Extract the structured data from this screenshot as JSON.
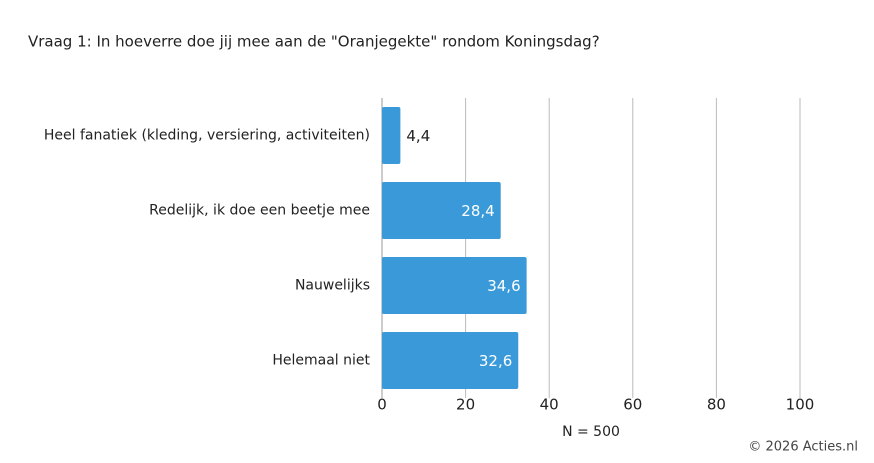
{
  "chart_data": {
    "type": "bar",
    "orientation": "horizontal",
    "title": "Vraag 1: In hoeverre doe jij mee aan de \"Oranjegekte\" rondom Koningsdag?",
    "categories": [
      "Heel fanatiek (kleding, versiering, activiteiten)",
      "Redelijk, ik doe een beetje mee",
      "Nauwelijks",
      "Helemaal niet"
    ],
    "values": [
      4.4,
      28.4,
      34.6,
      32.6
    ],
    "value_labels": [
      "4,4",
      "28,4",
      "34,6",
      "32,6"
    ],
    "color": "#3a9ad9",
    "xlim": [
      0,
      100
    ],
    "xticks": [
      0,
      20,
      40,
      60,
      80,
      100
    ],
    "x_label": "N = 500",
    "grid": true,
    "footer": "© 2026 Acties.nl"
  }
}
